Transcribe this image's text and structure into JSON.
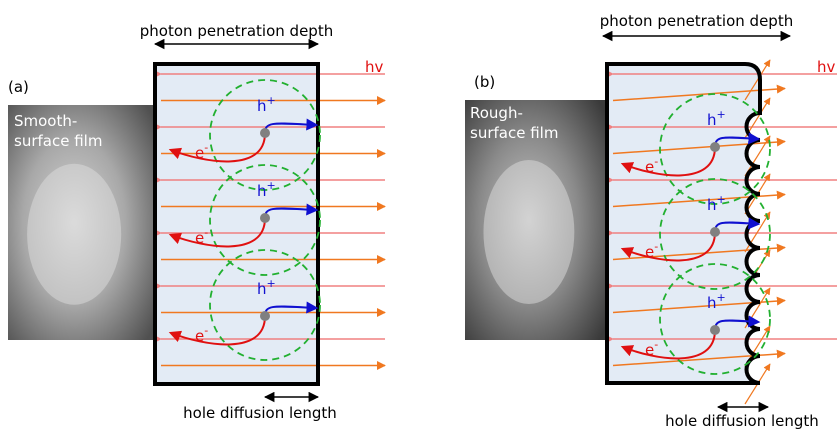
{
  "panels": [
    {
      "label": "(a)",
      "film_label": [
        "Smooth-",
        "surface film"
      ],
      "top_label": "photon penetration depth",
      "light_label": "hv",
      "bottom_label": "hole diffusion length",
      "carriers": [
        {
          "hole": {
            "base": "h",
            "sup": "+"
          },
          "electron": {
            "base": "e",
            "sup": "-"
          }
        },
        {
          "hole": {
            "base": "h",
            "sup": "+"
          },
          "electron": {
            "base": "e",
            "sup": "-"
          }
        },
        {
          "hole": {
            "base": "h",
            "sup": "+"
          },
          "electron": {
            "base": "e",
            "sup": "-"
          }
        }
      ]
    },
    {
      "label": "(b)",
      "film_label": [
        "Rough-",
        "surface film"
      ],
      "top_label": "photon penetration depth",
      "light_label": "hv",
      "bottom_label": "hole diffusion length",
      "carriers": [
        {
          "hole": {
            "base": "h",
            "sup": "+"
          },
          "electron": {
            "base": "e",
            "sup": "-"
          }
        },
        {
          "hole": {
            "base": "h",
            "sup": "+"
          },
          "electron": {
            "base": "e",
            "sup": "-"
          }
        },
        {
          "hole": {
            "base": "h",
            "sup": "+"
          },
          "electron": {
            "base": "e",
            "sup": "-"
          }
        }
      ]
    }
  ]
}
